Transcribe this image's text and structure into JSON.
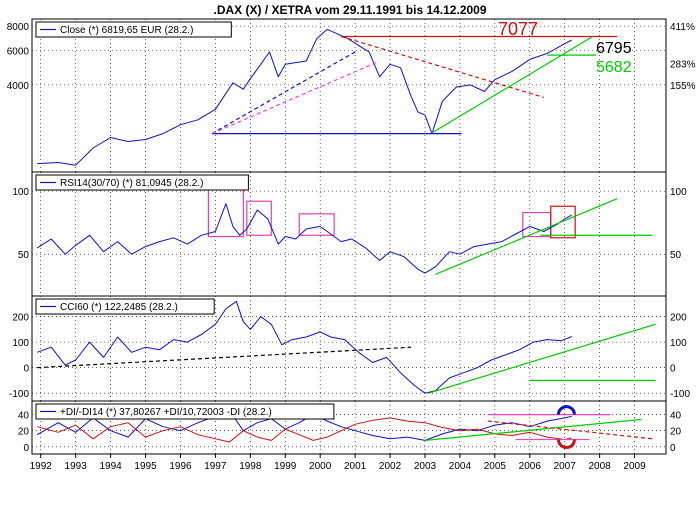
{
  "page_title": ".DAX (X) / XETRA vom 29.11.1991 bis 14.12.2009",
  "colors": {
    "price": "#1010c8",
    "trend_green": "#00cc00",
    "trend_red": "#cc1111",
    "pink": "#ee44cc",
    "box": "#dd44aa",
    "di_minus": "#cc1111",
    "grid": "#000000"
  },
  "x_axis": {
    "years": [
      "1992",
      "1993",
      "1994",
      "1995",
      "1996",
      "1997",
      "1998",
      "1999",
      "2000",
      "2001",
      "2002",
      "2003",
      "2004",
      "2005",
      "2006",
      "2007",
      "2008",
      "2009"
    ]
  },
  "chart_data": [
    {
      "id": "close",
      "type": "line",
      "legend": "Close (*) 6819,65 EUR (28.2.)",
      "scale": "log",
      "left_ticks": [
        "8000",
        "6000",
        "4000"
      ],
      "right_ticks": [
        "411%",
        "283%",
        "155%"
      ],
      "ylim": [
        1500,
        8300
      ],
      "annotations": [
        {
          "text": "7077",
          "color": "#cc1111"
        },
        {
          "text": "6795",
          "color": "#000000"
        },
        {
          "text": "5682",
          "color": "#00cc00"
        }
      ],
      "series": [
        {
          "x": [
            1991.9,
            1992.5,
            1993.0,
            1993.5,
            1994.0,
            1994.5,
            1995.0,
            1995.5,
            1996.0,
            1996.5,
            1997.0,
            1997.5,
            1997.8,
            1998.0,
            1998.3,
            1998.55,
            1998.8,
            1999.0,
            1999.3,
            1999.6,
            1999.9,
            2000.2,
            2000.5,
            2000.8,
            2001.2,
            2001.4,
            2001.7,
            2002.0,
            2002.3,
            2002.6,
            2002.8,
            2003.0,
            2003.2,
            2003.5,
            2003.9,
            2004.3,
            2004.7,
            2005.0,
            2005.5,
            2006.0,
            2006.5,
            2007.0,
            2007.2
          ],
          "y": [
            1580,
            1600,
            1550,
            1900,
            2150,
            2050,
            2100,
            2250,
            2500,
            2650,
            3000,
            4100,
            3800,
            4300,
            5100,
            5900,
            4400,
            5100,
            5200,
            5300,
            6900,
            7700,
            7300,
            6900,
            6200,
            5900,
            4400,
            5100,
            4900,
            3500,
            2900,
            2800,
            2250,
            3300,
            3900,
            4000,
            3700,
            4250,
            4700,
            5400,
            5800,
            6500,
            6795
          ]
        }
      ],
      "trendlines": [
        {
          "color": "#1010c8",
          "style": "solid",
          "x": [
            1996.9,
            2004.05
          ],
          "y": [
            2250,
            2250
          ]
        },
        {
          "color": "#1010c8",
          "style": "dashed",
          "x": [
            1996.9,
            2001.0
          ],
          "y": [
            2250,
            5900
          ]
        },
        {
          "color": "#ee44cc",
          "style": "dashed",
          "x": [
            1996.9,
            2001.6
          ],
          "y": [
            2250,
            5200
          ]
        },
        {
          "color": "#cc1111",
          "style": "solid",
          "x": [
            2000.6,
            2008.5
          ],
          "y": [
            7077,
            7077
          ]
        },
        {
          "color": "#cc1111",
          "style": "dashed",
          "x": [
            2000.6,
            2006.4
          ],
          "y": [
            7077,
            3450
          ]
        },
        {
          "color": "#00cc00",
          "style": "solid",
          "x": [
            2003.2,
            2007.8
          ],
          "y": [
            2270,
            7077
          ]
        },
        {
          "color": "#00cc00",
          "style": "solid",
          "x": [
            2006.5,
            2007.9
          ],
          "y": [
            5682,
            5682
          ]
        }
      ]
    },
    {
      "id": "rsi",
      "type": "line",
      "legend": "RSI14(30/70) (*) 81,0945 (28.2.)",
      "left_ticks": [
        "100",
        "50"
      ],
      "right_ticks": [
        "100",
        "50"
      ],
      "tick_values": [
        100,
        50
      ],
      "ylim": [
        20,
        112
      ],
      "series": [
        {
          "x": [
            1991.9,
            1992.3,
            1992.7,
            1993.0,
            1993.4,
            1993.8,
            1994.2,
            1994.6,
            1995.0,
            1995.4,
            1995.8,
            1996.2,
            1996.6,
            1997.0,
            1997.3,
            1997.5,
            1997.7,
            1997.9,
            1998.2,
            1998.5,
            1998.8,
            1999.0,
            1999.3,
            1999.6,
            2000.0,
            2000.3,
            2000.6,
            2000.9,
            2001.3,
            2001.7,
            2002.0,
            2002.4,
            2002.8,
            2003.0,
            2003.3,
            2003.7,
            2004.0,
            2004.4,
            2004.8,
            2005.2,
            2005.6,
            2006.0,
            2006.4,
            2006.8,
            2007.0,
            2007.2
          ],
          "y": [
            55,
            62,
            50,
            57,
            65,
            52,
            60,
            50,
            56,
            60,
            63,
            58,
            65,
            68,
            90,
            72,
            65,
            70,
            85,
            78,
            58,
            64,
            62,
            70,
            72,
            66,
            60,
            62,
            55,
            45,
            52,
            48,
            38,
            35,
            40,
            52,
            50,
            56,
            58,
            60,
            66,
            72,
            68,
            74,
            78,
            81
          ]
        }
      ],
      "trendlines": [
        {
          "color": "#00cc00",
          "style": "solid",
          "x": [
            2003.3,
            2008.5
          ],
          "y": [
            34,
            94
          ]
        },
        {
          "color": "#00cc00",
          "style": "solid",
          "x": [
            2006.3,
            2009.5
          ],
          "y": [
            65,
            65
          ]
        }
      ],
      "boxes": [
        {
          "x": [
            1996.8,
            1997.8
          ],
          "y": [
            64,
            108
          ]
        },
        {
          "x": [
            1997.9,
            1998.6
          ],
          "y": [
            65,
            92
          ]
        },
        {
          "x": [
            1999.4,
            2000.4
          ],
          "y": [
            65,
            82
          ]
        },
        {
          "x": [
            2005.8,
            2006.6
          ],
          "y": [
            64,
            83
          ]
        },
        {
          "x": [
            2006.6,
            2007.3
          ],
          "y": [
            63,
            88
          ]
        }
      ]
    },
    {
      "id": "cci",
      "type": "line",
      "legend": "CCI60 (*) 122,2485 (28.2.)",
      "left_ticks": [
        "200",
        "100",
        "0",
        "-100"
      ],
      "right_ticks": [
        "200",
        "100",
        "0",
        "-100"
      ],
      "tick_values": [
        200,
        100,
        0,
        -100
      ],
      "ylim": [
        -115,
        265
      ],
      "series": [
        {
          "x": [
            1991.9,
            1992.3,
            1992.7,
            1993.0,
            1993.4,
            1993.8,
            1994.2,
            1994.6,
            1995.0,
            1995.4,
            1995.8,
            1996.2,
            1996.6,
            1997.0,
            1997.3,
            1997.6,
            1997.8,
            1998.0,
            1998.3,
            1998.6,
            1998.9,
            1999.2,
            1999.6,
            2000.0,
            2000.3,
            2000.7,
            2001.1,
            2001.5,
            2001.9,
            2002.3,
            2002.7,
            2003.0,
            2003.3,
            2003.7,
            2004.1,
            2004.5,
            2004.9,
            2005.3,
            2005.7,
            2006.1,
            2006.5,
            2006.9,
            2007.2
          ],
          "y": [
            60,
            80,
            10,
            30,
            100,
            40,
            120,
            60,
            80,
            70,
            110,
            100,
            130,
            170,
            230,
            260,
            180,
            150,
            200,
            170,
            90,
            110,
            120,
            140,
            120,
            110,
            60,
            20,
            40,
            -20,
            -70,
            -100,
            -90,
            -40,
            -20,
            0,
            30,
            50,
            70,
            100,
            110,
            105,
            122
          ]
        }
      ],
      "trendlines": [
        {
          "color": "#000000",
          "style": "dashed",
          "x": [
            1991.9,
            2002.6
          ],
          "y": [
            0,
            80
          ]
        },
        {
          "color": "#00cc00",
          "style": "solid",
          "x": [
            2003.1,
            2009.6
          ],
          "y": [
            -100,
            170
          ]
        },
        {
          "color": "#00cc00",
          "style": "solid",
          "x": [
            2006.0,
            2009.6
          ],
          "y": [
            -50,
            -50
          ]
        }
      ]
    },
    {
      "id": "dmi",
      "type": "line",
      "legend": "+DI/-DI14 (*) 37,80267 +DI/10,72003 -DI (28.2.)",
      "left_ticks": [
        "40",
        "20",
        "0"
      ],
      "right_ticks": [
        "40",
        "20",
        "0"
      ],
      "tick_values": [
        40,
        20,
        0
      ],
      "ylim": [
        -4,
        52
      ],
      "series": [
        {
          "id": "plus_di",
          "color": "#1010c8",
          "x": [
            1991.9,
            1992.5,
            1993.0,
            1993.5,
            1994.0,
            1994.5,
            1995.0,
            1995.5,
            1996.0,
            1996.5,
            1997.0,
            1997.4,
            1997.8,
            1998.2,
            1998.6,
            1999.0,
            1999.4,
            1999.8,
            2000.2,
            2000.6,
            2001.0,
            2001.5,
            2002.0,
            2002.5,
            2003.0,
            2003.5,
            2004.0,
            2004.5,
            2005.0,
            2005.5,
            2006.0,
            2006.5,
            2007.0,
            2007.2
          ],
          "y": [
            15,
            30,
            18,
            36,
            20,
            12,
            35,
            25,
            20,
            30,
            38,
            45,
            20,
            30,
            35,
            22,
            30,
            40,
            32,
            25,
            20,
            14,
            10,
            12,
            8,
            16,
            22,
            20,
            27,
            30,
            25,
            32,
            36,
            38
          ]
        },
        {
          "id": "minus_di",
          "color": "#cc1111",
          "x": [
            1991.9,
            1992.5,
            1993.0,
            1993.5,
            1994.0,
            1994.5,
            1995.0,
            1995.5,
            1996.0,
            1996.5,
            1997.0,
            1997.4,
            1997.8,
            1998.2,
            1998.6,
            1999.0,
            1999.4,
            1999.8,
            2000.2,
            2000.6,
            2001.0,
            2001.5,
            2002.0,
            2002.5,
            2003.0,
            2003.5,
            2004.0,
            2004.5,
            2005.0,
            2005.5,
            2006.0,
            2006.5,
            2007.0,
            2007.2
          ],
          "y": [
            25,
            18,
            27,
            10,
            25,
            30,
            12,
            20,
            25,
            15,
            10,
            6,
            20,
            12,
            8,
            22,
            15,
            8,
            12,
            20,
            28,
            33,
            36,
            32,
            30,
            24,
            20,
            22,
            16,
            14,
            18,
            12,
            9,
            11
          ]
        }
      ],
      "trendlines": [
        {
          "color": "#00cc00",
          "style": "solid",
          "x": [
            2003.0,
            2009.2
          ],
          "y": [
            8,
            34
          ]
        },
        {
          "color": "#cc1111",
          "style": "dashed",
          "x": [
            2004.8,
            2009.5
          ],
          "y": [
            32,
            10
          ]
        },
        {
          "color": "#ee44cc",
          "style": "solid",
          "x": [
            2004.8,
            2008.3
          ],
          "y": [
            40,
            40
          ]
        },
        {
          "color": "#ee44cc",
          "style": "solid",
          "x": [
            2005.6,
            2007.7
          ],
          "y": [
            9,
            9
          ]
        }
      ],
      "arcs": [
        {
          "color": "#1010c8",
          "cx": 2007.05,
          "cy": 40,
          "direction": "up"
        },
        {
          "color": "#cc1111",
          "cx": 2007.05,
          "cy": 9,
          "direction": "down"
        }
      ]
    }
  ]
}
